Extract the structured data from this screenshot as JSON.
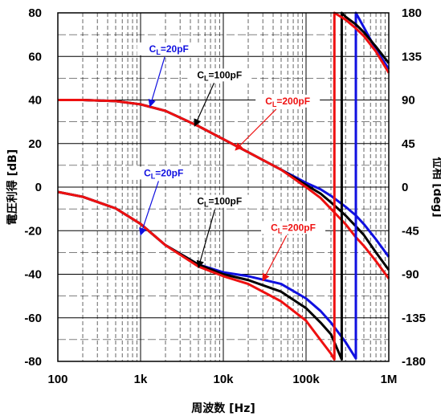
{
  "chart_data": {
    "type": "line",
    "x_scale": "log",
    "xlim": [
      100,
      1000000
    ],
    "ylim_left": [
      -80,
      80
    ],
    "ylim_right": [
      -180,
      180
    ],
    "xlabel": "周波数 [Hz]",
    "ylabel_left": "電圧利得 [dB]",
    "ylabel_right": "位相 [deg]",
    "x_ticks": [
      "100",
      "1k",
      "10k",
      "100k",
      "1M"
    ],
    "y_ticks_left": [
      "80",
      "60",
      "40",
      "20",
      "0",
      "-20",
      "-40",
      "-60",
      "-80"
    ],
    "y_ticks_right": [
      "180",
      "135",
      "90",
      "45",
      "0",
      "-45",
      "-90",
      "-135",
      "-180"
    ],
    "grid": true,
    "x_minor_grid": true,
    "y_minor_grid": true,
    "colors": {
      "20pF": "#1010e0",
      "100pF": "#000000",
      "200pF": "#ee1010"
    },
    "series": [
      {
        "name": "CL=20pF gain",
        "color": "#1010e0",
        "axis": "left",
        "x": [
          100,
          200,
          500,
          1000,
          2000,
          5000,
          10000,
          20000,
          50000,
          100000,
          150000,
          200000,
          300000,
          400000,
          500000,
          700000,
          1000000
        ],
        "y": [
          40,
          40,
          39.5,
          38,
          35,
          28,
          22,
          16,
          8,
          2,
          -1,
          -4,
          -9,
          -13,
          -17,
          -24,
          -32
        ]
      },
      {
        "name": "CL=100pF gain",
        "color": "#000000",
        "axis": "left",
        "x": [
          100,
          200,
          500,
          1000,
          2000,
          5000,
          10000,
          20000,
          50000,
          100000,
          150000,
          200000,
          300000,
          400000,
          500000,
          700000,
          1000000
        ],
        "y": [
          40,
          40,
          39.5,
          38,
          35,
          28,
          22,
          16,
          8,
          1,
          -3,
          -7,
          -13,
          -18,
          -22,
          -30,
          -38
        ]
      },
      {
        "name": "CL=200pF gain",
        "color": "#ee1010",
        "axis": "left",
        "x": [
          100,
          200,
          500,
          1000,
          2000,
          5000,
          10000,
          20000,
          50000,
          100000,
          150000,
          200000,
          300000,
          400000,
          500000,
          700000,
          1000000
        ],
        "y": [
          40,
          40,
          39.5,
          38,
          35,
          28,
          22,
          16,
          8,
          0,
          -5,
          -10,
          -17,
          -23,
          -27,
          -34,
          -42
        ]
      },
      {
        "name": "CL=20pF phase",
        "color": "#1010e0",
        "axis": "right",
        "x": [
          100,
          200,
          500,
          1000,
          2000,
          5000,
          10000,
          20000,
          50000,
          100000,
          150000,
          200000,
          300000,
          400000,
          400000,
          500000,
          700000,
          1000000
        ],
        "y": [
          -5,
          -10,
          -22,
          -38,
          -60,
          -80,
          -88,
          -92,
          -100,
          -115,
          -128,
          -140,
          -160,
          -177,
          180,
          165,
          142,
          122
        ]
      },
      {
        "name": "CL=100pF phase",
        "color": "#000000",
        "axis": "right",
        "x": [
          100,
          200,
          500,
          1000,
          2000,
          5000,
          10000,
          20000,
          50000,
          100000,
          150000,
          200000,
          270000,
          270000,
          300000,
          400000,
          500000,
          700000,
          1000000
        ],
        "y": [
          -5,
          -10,
          -22,
          -38,
          -60,
          -80,
          -90,
          -96,
          -108,
          -125,
          -140,
          -152,
          -178,
          180,
          176,
          168,
          160,
          145,
          128
        ]
      },
      {
        "name": "CL=200pF phase",
        "color": "#ee1010",
        "axis": "right",
        "x": [
          100,
          200,
          500,
          1000,
          2000,
          5000,
          10000,
          20000,
          50000,
          100000,
          150000,
          200000,
          220000,
          220000,
          300000,
          400000,
          500000,
          700000,
          1000000
        ],
        "y": [
          -5,
          -10,
          -22,
          -38,
          -60,
          -82,
          -92,
          -100,
          -118,
          -138,
          -158,
          -172,
          -178,
          180,
          173,
          164,
          156,
          140,
          118
        ]
      }
    ],
    "annotations": [
      {
        "text": "C",
        "sub": "L",
        "suffix": "=20pF",
        "color": "#1010e0",
        "x_hz": 2200,
        "y_db": 62,
        "arrow_x_hz": 1300,
        "arrow_y_db": 37
      },
      {
        "text": "C",
        "sub": "L",
        "suffix": "=100pF",
        "color": "#000000",
        "x_hz": 9000,
        "y_db": 50,
        "arrow_x_hz": 4500,
        "arrow_y_db": 28
      },
      {
        "text": "C",
        "sub": "L",
        "suffix": "=200pF",
        "color": "#ee1010",
        "x_hz": 60000,
        "y_db": 38,
        "arrow_x_hz": 14000,
        "arrow_y_db": 17
      },
      {
        "text": "C",
        "sub": "L",
        "suffix": "=20pF",
        "color": "#1010e0",
        "x_hz": 1900,
        "y_db": 5,
        "arrow_x_hz": 1000,
        "arrow_y_db": -22
      },
      {
        "text": "C",
        "sub": "L",
        "suffix": "=100pF",
        "color": "#000000",
        "x_hz": 9000,
        "y_db": -8,
        "arrow_x_hz": 5000,
        "arrow_y_db": -37
      },
      {
        "text": "C",
        "sub": "L",
        "suffix": "=200pF",
        "color": "#ee1010",
        "x_hz": 70000,
        "y_db": -20,
        "arrow_x_hz": 30000,
        "arrow_y_db": -43
      }
    ]
  }
}
